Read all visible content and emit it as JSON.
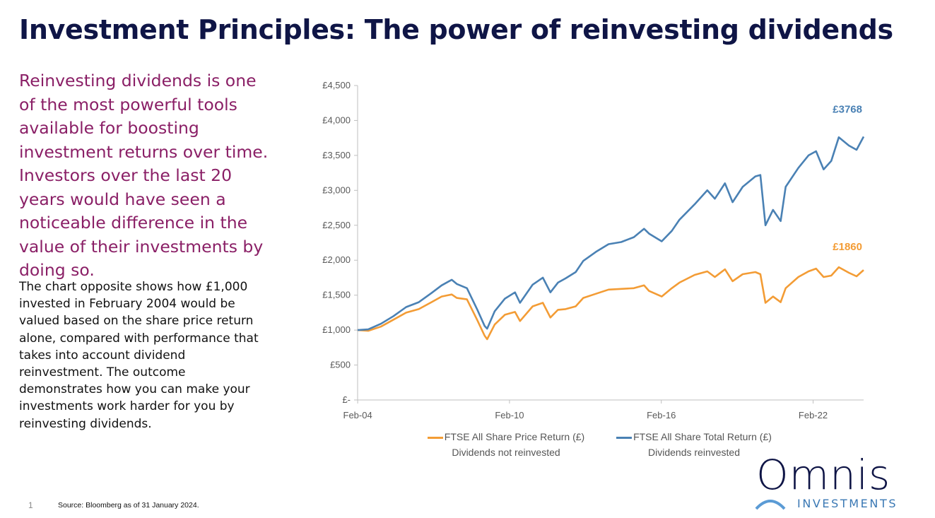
{
  "title": "Investment Principles: The power of reinvesting dividends",
  "intro": "Reinvesting dividends is one of the most powerful tools available for boosting investment returns over time. Investors over the last 20 years would have seen a noticeable difference in the value of their investments by doing so.",
  "body": "The chart opposite shows how £1,000 invested in February 2004 would be valued based on the share price return alone, compared with performance that takes into account dividend reinvestment. The outcome demonstrates how you can make your investments work harder for you by reinvesting dividends.",
  "page_number": "1",
  "source": "Source: Bloomberg as of 31 January 2024.",
  "logo": {
    "name": "Omnis",
    "sub": "INVESTMENTS"
  },
  "colors": {
    "price": "#f39c35",
    "total": "#4a81b4",
    "title": "#0f1546",
    "intro": "#8a1f66"
  },
  "chart_data": {
    "type": "line",
    "x_ticks": [
      "Feb-04",
      "Feb-10",
      "Feb-16",
      "Feb-22"
    ],
    "y_ticks": [
      "£-",
      "£500",
      "£1,000",
      "£1,500",
      "£2,000",
      "£2,500",
      "£3,000",
      "£3,500",
      "£4,000",
      "£4,500"
    ],
    "ylim": [
      0,
      4500
    ],
    "xlim": [
      2004.08,
      2024.08
    ],
    "grid": false,
    "legend_position": "bottom",
    "series": [
      {
        "name": "FTSE All Share Price Return (£)",
        "subtitle": "Dividends not reinvested",
        "color": "#f39c35",
        "end_label": "£1860",
        "points": [
          [
            2004.08,
            1000
          ],
          [
            2004.5,
            990
          ],
          [
            2005.0,
            1050
          ],
          [
            2005.5,
            1150
          ],
          [
            2006.0,
            1250
          ],
          [
            2006.5,
            1300
          ],
          [
            2007.0,
            1400
          ],
          [
            2007.4,
            1480
          ],
          [
            2007.8,
            1510
          ],
          [
            2008.0,
            1460
          ],
          [
            2008.4,
            1440
          ],
          [
            2008.8,
            1150
          ],
          [
            2009.1,
            920
          ],
          [
            2009.2,
            870
          ],
          [
            2009.5,
            1080
          ],
          [
            2009.9,
            1220
          ],
          [
            2010.3,
            1260
          ],
          [
            2010.5,
            1130
          ],
          [
            2011.0,
            1340
          ],
          [
            2011.4,
            1390
          ],
          [
            2011.7,
            1180
          ],
          [
            2012.0,
            1290
          ],
          [
            2012.3,
            1300
          ],
          [
            2012.7,
            1340
          ],
          [
            2013.0,
            1460
          ],
          [
            2013.5,
            1520
          ],
          [
            2014.0,
            1580
          ],
          [
            2014.5,
            1590
          ],
          [
            2015.0,
            1600
          ],
          [
            2015.4,
            1640
          ],
          [
            2015.6,
            1560
          ],
          [
            2016.1,
            1480
          ],
          [
            2016.5,
            1600
          ],
          [
            2016.8,
            1680
          ],
          [
            2017.4,
            1790
          ],
          [
            2017.9,
            1840
          ],
          [
            2018.2,
            1760
          ],
          [
            2018.6,
            1870
          ],
          [
            2018.9,
            1700
          ],
          [
            2019.3,
            1800
          ],
          [
            2019.8,
            1830
          ],
          [
            2020.0,
            1800
          ],
          [
            2020.2,
            1390
          ],
          [
            2020.5,
            1480
          ],
          [
            2020.8,
            1400
          ],
          [
            2021.0,
            1600
          ],
          [
            2021.5,
            1760
          ],
          [
            2021.9,
            1840
          ],
          [
            2022.2,
            1880
          ],
          [
            2022.5,
            1760
          ],
          [
            2022.8,
            1780
          ],
          [
            2023.1,
            1900
          ],
          [
            2023.5,
            1820
          ],
          [
            2023.8,
            1770
          ],
          [
            2024.08,
            1860
          ]
        ]
      },
      {
        "name": "FTSE All Share Total Return (£)",
        "subtitle": "Dividends reinvested",
        "color": "#4a81b4",
        "end_label": "£3768",
        "points": [
          [
            2004.08,
            1000
          ],
          [
            2004.5,
            1010
          ],
          [
            2005.0,
            1090
          ],
          [
            2005.5,
            1200
          ],
          [
            2006.0,
            1330
          ],
          [
            2006.5,
            1400
          ],
          [
            2007.0,
            1530
          ],
          [
            2007.4,
            1640
          ],
          [
            2007.8,
            1720
          ],
          [
            2008.0,
            1660
          ],
          [
            2008.4,
            1600
          ],
          [
            2008.8,
            1300
          ],
          [
            2009.1,
            1060
          ],
          [
            2009.2,
            1020
          ],
          [
            2009.5,
            1270
          ],
          [
            2009.9,
            1450
          ],
          [
            2010.3,
            1540
          ],
          [
            2010.5,
            1390
          ],
          [
            2011.0,
            1650
          ],
          [
            2011.4,
            1750
          ],
          [
            2011.7,
            1540
          ],
          [
            2012.0,
            1680
          ],
          [
            2012.3,
            1740
          ],
          [
            2012.7,
            1830
          ],
          [
            2013.0,
            1990
          ],
          [
            2013.5,
            2120
          ],
          [
            2014.0,
            2230
          ],
          [
            2014.5,
            2260
          ],
          [
            2015.0,
            2330
          ],
          [
            2015.4,
            2450
          ],
          [
            2015.6,
            2380
          ],
          [
            2016.1,
            2270
          ],
          [
            2016.5,
            2420
          ],
          [
            2016.8,
            2580
          ],
          [
            2017.4,
            2800
          ],
          [
            2017.9,
            3000
          ],
          [
            2018.2,
            2880
          ],
          [
            2018.6,
            3100
          ],
          [
            2018.9,
            2830
          ],
          [
            2019.3,
            3050
          ],
          [
            2019.8,
            3200
          ],
          [
            2020.0,
            3220
          ],
          [
            2020.2,
            2500
          ],
          [
            2020.5,
            2720
          ],
          [
            2020.8,
            2560
          ],
          [
            2021.0,
            3050
          ],
          [
            2021.5,
            3320
          ],
          [
            2021.9,
            3500
          ],
          [
            2022.2,
            3560
          ],
          [
            2022.5,
            3300
          ],
          [
            2022.8,
            3420
          ],
          [
            2023.1,
            3760
          ],
          [
            2023.5,
            3640
          ],
          [
            2023.8,
            3580
          ],
          [
            2024.08,
            3768
          ]
        ]
      }
    ]
  }
}
